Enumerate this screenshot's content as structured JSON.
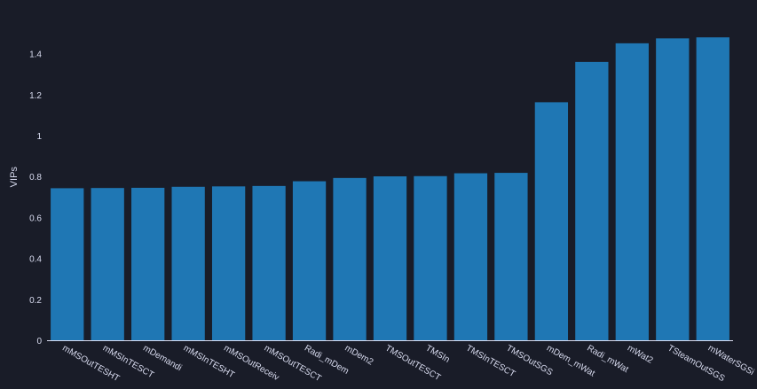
{
  "colors": {
    "background": "#191c28",
    "bar": "#1f77b4",
    "text": "#d9dcf0",
    "axis_line": "#d9dcf0"
  },
  "chart_data": {
    "type": "bar",
    "categories": [
      "mMSOutTESHT",
      "mMSInTESCT",
      "mDemandi",
      "mMSInTESHT",
      "mMSOutReceiv",
      "mMSOutTESCT",
      "Radi_mDem",
      "mDem2",
      "TMSOutTESCT",
      "TMSIn",
      "TMSInTESCT",
      "TMSOutSGS",
      "mDem_mWat",
      "Radi_mWat",
      "mWat2",
      "TSteamOutSGS",
      "mWaterSGSi"
    ],
    "values": [
      0.745,
      0.746,
      0.747,
      0.752,
      0.754,
      0.756,
      0.779,
      0.795,
      0.803,
      0.804,
      0.818,
      0.82,
      1.165,
      1.362,
      1.453,
      1.477,
      1.482
    ],
    "ylabel": "VIPs",
    "xlabel": "",
    "ylim": [
      0,
      1.55
    ],
    "yticks": [
      0,
      0.2,
      0.4,
      0.6,
      0.8,
      1,
      1.2,
      1.4
    ],
    "ytick_labels": [
      "0",
      "0.2",
      "0.4",
      "0.6",
      "0.8",
      "1",
      "1.2",
      "1.4"
    ],
    "grid": false,
    "legend": "none"
  }
}
